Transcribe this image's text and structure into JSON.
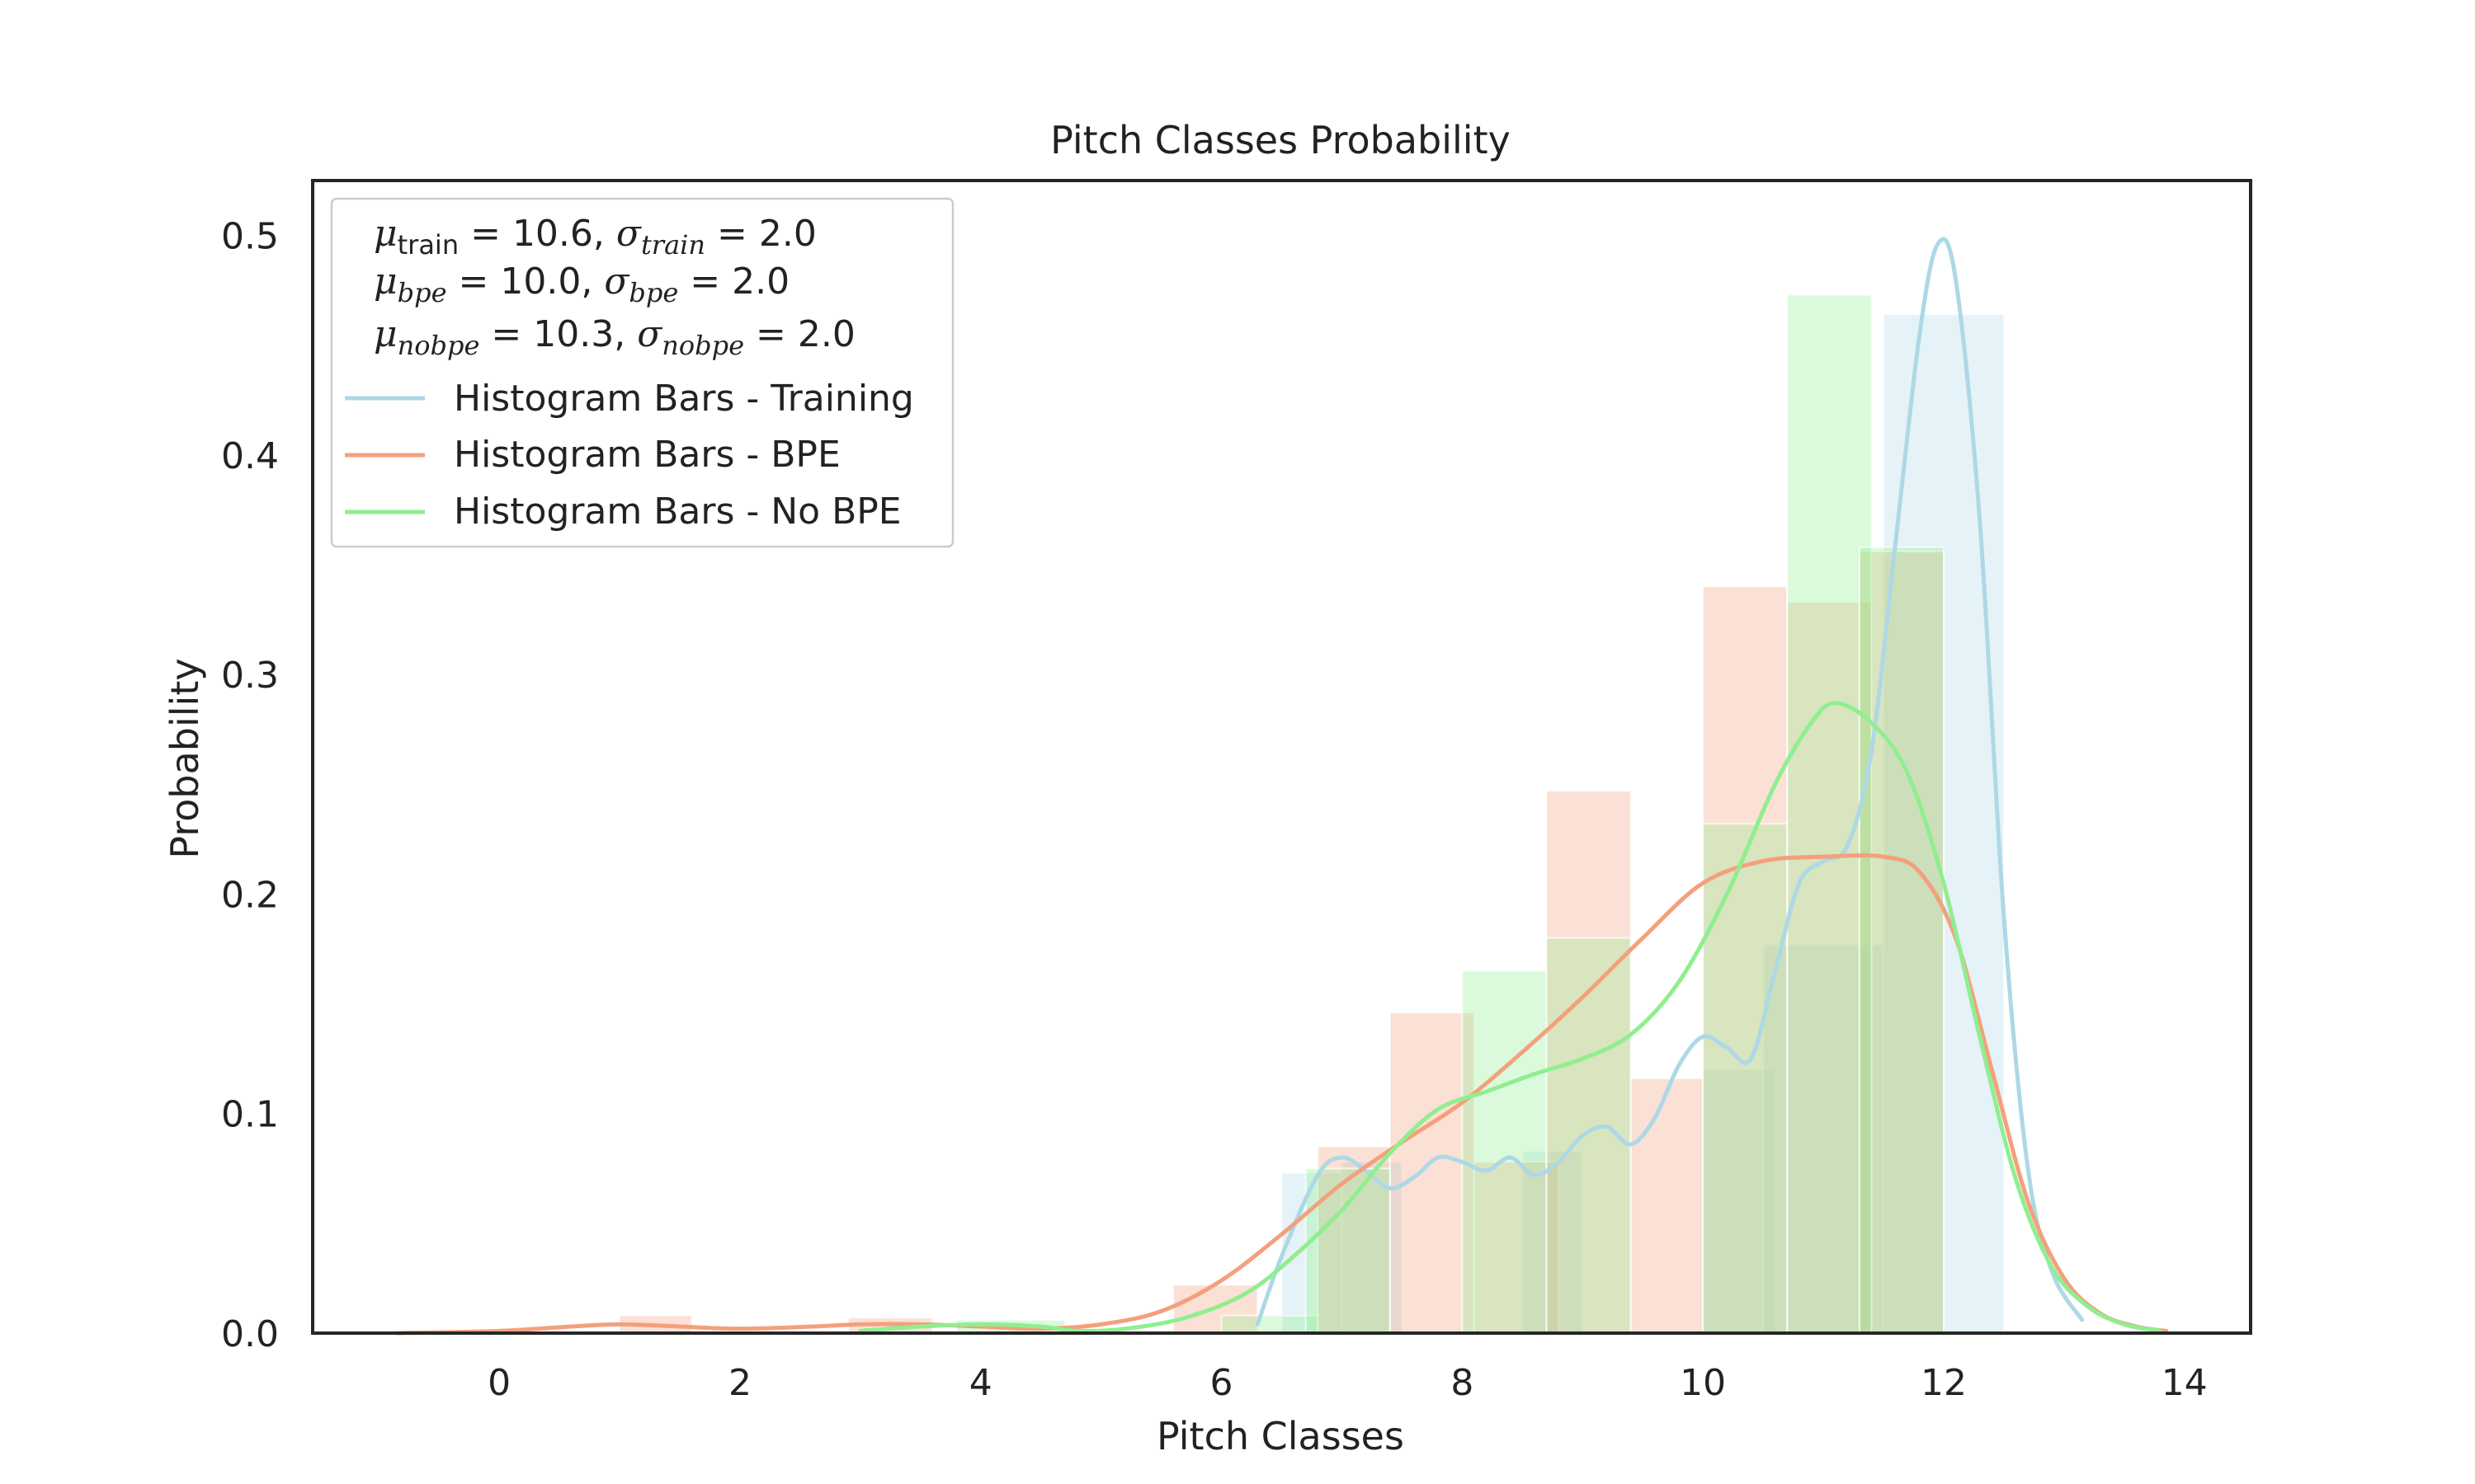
{
  "chart_data": {
    "type": "bar",
    "title": "Pitch Classes Probability",
    "xlabel": "Pitch Classes",
    "ylabel": "Probability",
    "xlim": [
      -1.55,
      14.55
    ],
    "ylim": [
      0,
      0.525
    ],
    "xticks": [
      0,
      2,
      4,
      6,
      8,
      10,
      12,
      14
    ],
    "yticks": [
      0.0,
      0.1,
      0.2,
      0.3,
      0.4,
      0.5
    ],
    "xtick_labels": [
      "0",
      "2",
      "4",
      "6",
      "8",
      "10",
      "12",
      "14"
    ],
    "ytick_labels": [
      "0.0",
      "0.1",
      "0.2",
      "0.3",
      "0.4",
      "0.5"
    ],
    "grid": false,
    "legend_position": "top-left",
    "stats": [
      {
        "mu_sub": "train",
        "mu_val": "10.6",
        "sigma_sub": "train",
        "sigma_val": "2.0"
      },
      {
        "mu_sub": "bpe",
        "mu_val": "10.0",
        "sigma_sub": "bpe",
        "sigma_val": "2.0"
      },
      {
        "mu_sub": "nobpe",
        "mu_val": "10.3",
        "sigma_sub": "nobpe",
        "sigma_val": "2.0"
      }
    ],
    "series": [
      {
        "name": "Histogram Bars - Training",
        "color": "#add8e6",
        "bars": [
          {
            "x0": 6.5,
            "x1": 7.0,
            "y": 0.073
          },
          {
            "x0": 7.0,
            "x1": 7.5,
            "y": 0.078
          },
          {
            "x0": 8.5,
            "x1": 9.0,
            "y": 0.083
          },
          {
            "x0": 10.0,
            "x1": 10.6,
            "y": 0.12
          },
          {
            "x0": 10.5,
            "x1": 11.5,
            "y": 0.177
          },
          {
            "x0": 11.5,
            "x1": 12.5,
            "y": 0.464
          }
        ],
        "kde": [
          [
            6.3,
            0.004
          ],
          [
            6.5,
            0.035
          ],
          [
            6.8,
            0.072
          ],
          [
            7.0,
            0.08
          ],
          [
            7.2,
            0.074
          ],
          [
            7.4,
            0.066
          ],
          [
            7.6,
            0.071
          ],
          [
            7.8,
            0.08
          ],
          [
            8.0,
            0.078
          ],
          [
            8.2,
            0.074
          ],
          [
            8.4,
            0.08
          ],
          [
            8.6,
            0.072
          ],
          [
            8.8,
            0.078
          ],
          [
            9.0,
            0.09
          ],
          [
            9.2,
            0.094
          ],
          [
            9.4,
            0.086
          ],
          [
            9.6,
            0.098
          ],
          [
            9.8,
            0.122
          ],
          [
            10.0,
            0.135
          ],
          [
            10.2,
            0.13
          ],
          [
            10.4,
            0.125
          ],
          [
            10.6,
            0.165
          ],
          [
            10.8,
            0.205
          ],
          [
            11.0,
            0.215
          ],
          [
            11.2,
            0.222
          ],
          [
            11.4,
            0.265
          ],
          [
            11.6,
            0.36
          ],
          [
            11.8,
            0.455
          ],
          [
            11.95,
            0.496
          ],
          [
            12.1,
            0.48
          ],
          [
            12.3,
            0.37
          ],
          [
            12.5,
            0.19
          ],
          [
            12.7,
            0.075
          ],
          [
            12.9,
            0.028
          ],
          [
            13.15,
            0.006
          ]
        ]
      },
      {
        "name": "Histogram Bars - BPE",
        "color": "#f4a07c",
        "bars": [
          {
            "x0": 1.0,
            "x1": 1.6,
            "y": 0.008
          },
          {
            "x0": 2.9,
            "x1": 3.6,
            "y": 0.007
          },
          {
            "x0": 5.6,
            "x1": 6.3,
            "y": 0.022
          },
          {
            "x0": 6.8,
            "x1": 7.4,
            "y": 0.085
          },
          {
            "x0": 7.4,
            "x1": 8.1,
            "y": 0.146
          },
          {
            "x0": 8.1,
            "x1": 8.8,
            "y": 0.078
          },
          {
            "x0": 8.7,
            "x1": 9.4,
            "y": 0.247
          },
          {
            "x0": 9.4,
            "x1": 10.0,
            "y": 0.116
          },
          {
            "x0": 10.0,
            "x1": 10.7,
            "y": 0.34
          },
          {
            "x0": 10.7,
            "x1": 11.4,
            "y": 0.333
          },
          {
            "x0": 11.3,
            "x1": 12.0,
            "y": 0.356
          }
        ],
        "kde": [
          [
            -0.85,
            0.0
          ],
          [
            0.0,
            0.001
          ],
          [
            0.6,
            0.003
          ],
          [
            1.0,
            0.004
          ],
          [
            1.5,
            0.003
          ],
          [
            2.0,
            0.002
          ],
          [
            2.6,
            0.003
          ],
          [
            3.0,
            0.004
          ],
          [
            3.5,
            0.004
          ],
          [
            4.0,
            0.003
          ],
          [
            4.5,
            0.002
          ],
          [
            5.0,
            0.004
          ],
          [
            5.5,
            0.01
          ],
          [
            6.0,
            0.024
          ],
          [
            6.5,
            0.045
          ],
          [
            7.0,
            0.068
          ],
          [
            7.5,
            0.087
          ],
          [
            8.0,
            0.105
          ],
          [
            8.5,
            0.128
          ],
          [
            9.0,
            0.153
          ],
          [
            9.5,
            0.18
          ],
          [
            10.0,
            0.205
          ],
          [
            10.5,
            0.215
          ],
          [
            11.0,
            0.217
          ],
          [
            11.5,
            0.217
          ],
          [
            11.8,
            0.21
          ],
          [
            12.1,
            0.18
          ],
          [
            12.4,
            0.12
          ],
          [
            12.7,
            0.06
          ],
          [
            13.0,
            0.025
          ],
          [
            13.3,
            0.009
          ],
          [
            13.6,
            0.003
          ],
          [
            13.85,
            0.001
          ]
        ]
      },
      {
        "name": "Histogram Bars - No BPE",
        "color": "#90ee90",
        "bars": [
          {
            "x0": 3.8,
            "x1": 4.7,
            "y": 0.006
          },
          {
            "x0": 6.0,
            "x1": 6.8,
            "y": 0.008
          },
          {
            "x0": 6.7,
            "x1": 7.4,
            "y": 0.075
          },
          {
            "x0": 8.0,
            "x1": 8.7,
            "y": 0.165
          },
          {
            "x0": 8.7,
            "x1": 9.4,
            "y": 0.18
          },
          {
            "x0": 10.0,
            "x1": 10.7,
            "y": 0.232
          },
          {
            "x0": 10.7,
            "x1": 11.4,
            "y": 0.473
          },
          {
            "x0": 11.3,
            "x1": 12.0,
            "y": 0.358
          }
        ],
        "kde": [
          [
            3.0,
            0.001
          ],
          [
            3.5,
            0.003
          ],
          [
            4.0,
            0.004
          ],
          [
            4.5,
            0.003
          ],
          [
            4.8,
            0.001
          ],
          [
            5.2,
            0.002
          ],
          [
            5.7,
            0.007
          ],
          [
            6.2,
            0.018
          ],
          [
            6.6,
            0.035
          ],
          [
            7.0,
            0.056
          ],
          [
            7.4,
            0.082
          ],
          [
            7.8,
            0.102
          ],
          [
            8.2,
            0.11
          ],
          [
            8.6,
            0.118
          ],
          [
            9.0,
            0.125
          ],
          [
            9.4,
            0.136
          ],
          [
            9.8,
            0.16
          ],
          [
            10.2,
            0.2
          ],
          [
            10.6,
            0.25
          ],
          [
            10.9,
            0.278
          ],
          [
            11.1,
            0.287
          ],
          [
            11.4,
            0.278
          ],
          [
            11.7,
            0.255
          ],
          [
            12.0,
            0.205
          ],
          [
            12.3,
            0.135
          ],
          [
            12.6,
            0.07
          ],
          [
            12.9,
            0.03
          ],
          [
            13.2,
            0.012
          ],
          [
            13.5,
            0.004
          ],
          [
            13.8,
            0.001
          ]
        ]
      }
    ]
  }
}
